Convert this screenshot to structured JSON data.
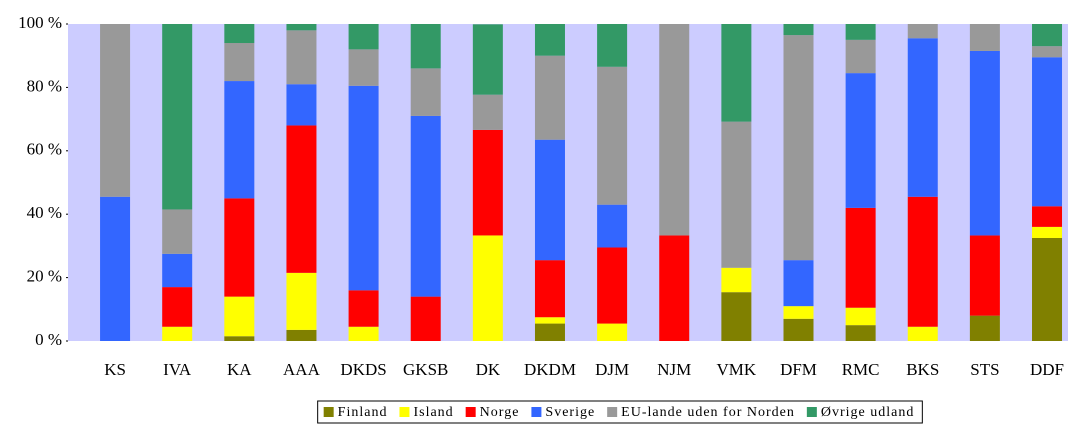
{
  "chart_data": {
    "type": "stacked_bar",
    "categories": [
      "KS",
      "IVA",
      "KA",
      "AAA",
      "DKDS",
      "GKSB",
      "DK",
      "DKDM",
      "DJM",
      "NJM",
      "VMK",
      "DFM",
      "RMC",
      "BKS",
      "STS",
      "DDF"
    ],
    "series": [
      {
        "name": "Finland",
        "color": "#808000",
        "values": [
          0,
          0,
          1.5,
          3.5,
          0,
          0,
          0,
          5.5,
          0,
          0,
          15.4,
          7,
          5,
          0,
          8,
          32.5
        ]
      },
      {
        "name": "Island",
        "color": "#ffff00",
        "values": [
          0,
          4.5,
          12.5,
          18,
          4.5,
          0,
          33.3,
          2,
          5.5,
          0,
          7.7,
          4,
          5.5,
          4.5,
          0,
          3.5
        ]
      },
      {
        "name": "Norge",
        "color": "#ff0000",
        "values": [
          0,
          12.5,
          31,
          46.5,
          11.5,
          14,
          33.3,
          18,
          24,
          33.3,
          0,
          0,
          31.5,
          41,
          25.3,
          6.5
        ]
      },
      {
        "name": "Sverige",
        "color": "#3366ff",
        "values": [
          45.5,
          10.5,
          37,
          13,
          64.5,
          57,
          0,
          38,
          13.5,
          0,
          0,
          14.5,
          42.5,
          50,
          58.2,
          47
        ]
      },
      {
        "name": "EU-lande uden for Norden",
        "color": "#999999",
        "values": [
          54.5,
          14,
          12,
          17,
          11.5,
          15,
          11.1,
          26.5,
          43.5,
          66.7,
          46.1,
          71,
          10.5,
          4.5,
          8.5,
          3.5
        ]
      },
      {
        "name": "Øvrige udland",
        "color": "#339966",
        "values": [
          0,
          58.5,
          6,
          2,
          8,
          14,
          22.2,
          10,
          13.5,
          0,
          30.8,
          3.5,
          5,
          0,
          0,
          7
        ]
      }
    ],
    "ylim": [
      0,
      100
    ],
    "yticks": [
      {
        "value": 0,
        "label": "0 %"
      },
      {
        "value": 20,
        "label": "20 %"
      },
      {
        "value": 40,
        "label": "40 %"
      },
      {
        "value": 60,
        "label": "60 %"
      },
      {
        "value": 80,
        "label": "80 %"
      },
      {
        "value": 100,
        "label": "100 %"
      }
    ],
    "plot_background": "#ccccff",
    "legend": "bottom"
  }
}
